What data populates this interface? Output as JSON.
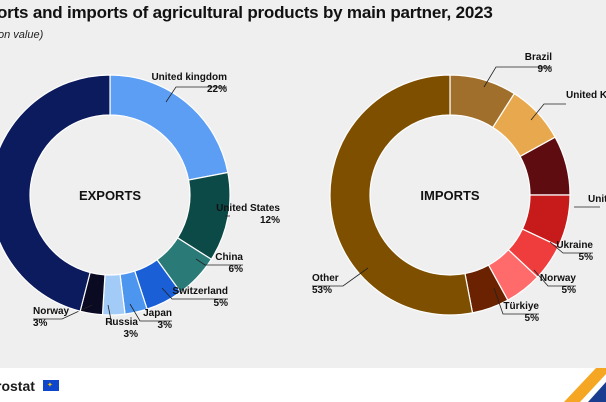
{
  "title": "orts and imports of agricultural products by main partner, 2023",
  "subtitle": "on value)",
  "footer": {
    "brand": "rostat"
  },
  "colors": {
    "background": "#efefef",
    "footer": "#ffffff",
    "accent": "#f5a623"
  },
  "chart_data": [
    {
      "type": "pie",
      "center_label": "EXPORTS",
      "unit": "%",
      "slices": [
        {
          "name": "United kingdom",
          "value": 22,
          "color": "#5b9ef4",
          "label": "22%"
        },
        {
          "name": "United States",
          "value": 12,
          "color": "#0c4a48",
          "label": "12%"
        },
        {
          "name": "China",
          "value": 6,
          "color": "#2a7a78",
          "label": "6%"
        },
        {
          "name": "Switzerland",
          "value": 5,
          "color": "#1b5fd6",
          "label": "5%"
        },
        {
          "name": "Japan",
          "value": 3,
          "color": "#4d96f0",
          "label": "3%"
        },
        {
          "name": "Russia",
          "value": 3,
          "color": "#a2cbf8",
          "label": "3%"
        },
        {
          "name": "Norway",
          "value": 3,
          "color": "#0a0a23",
          "label": "3%"
        },
        {
          "name": "",
          "value": 46,
          "color": "#0c1a5e",
          "label": ""
        }
      ]
    },
    {
      "type": "pie",
      "center_label": "IMPORTS",
      "unit": "%",
      "slices": [
        {
          "name": "Brazil",
          "value": 9,
          "color": "#a06f2b",
          "label": "9%"
        },
        {
          "name": "United King",
          "value": 8,
          "color": "#e8a84d",
          "label": ""
        },
        {
          "name": "",
          "value": 8,
          "color": "#5e0c10",
          "label": ""
        },
        {
          "name": "Unite",
          "value": 7,
          "color": "#c71a1a",
          "label": ""
        },
        {
          "name": "Ukraine",
          "value": 5,
          "color": "#ef3d3d",
          "label": "5%"
        },
        {
          "name": "Norway",
          "value": 5,
          "color": "#ff6b6b",
          "label": "5%"
        },
        {
          "name": "Türkiye",
          "value": 5,
          "color": "#6a2200",
          "label": "5%"
        },
        {
          "name": "Other",
          "value": 53,
          "color": "#7f4f00",
          "label": "53%"
        }
      ]
    }
  ]
}
